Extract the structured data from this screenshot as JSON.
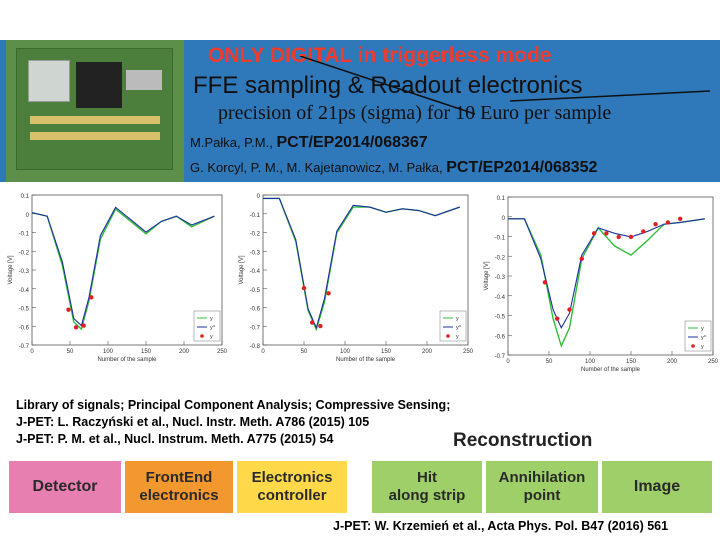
{
  "header": {
    "title_line1": "ONLY DIGITAL in triggerless mode",
    "title_line2": "FFE sampling  &  Readout electronics",
    "title_line3": "precision of 21ps (sigma) for 10 Euro per sample",
    "ref1_authors": "M.Pałka, P.M., ",
    "ref1_patent": "PCT/EP2014/068367",
    "ref2_authors": "G. Korcyl, P. M., M. Kajetanowicz, M. Pałka, ",
    "ref2_patent": "PCT/EP2014/068352"
  },
  "colors": {
    "header_bg": "#2f78ba",
    "title_red": "#f23a2a",
    "green_curve": "#2fbf3a",
    "blue_curve": "#1f2fa0",
    "red_points": "#e02020"
  },
  "plots": {
    "ylabel": "Voltage [V]",
    "xlabel": "Number of the sample",
    "legend": [
      "y",
      "y^",
      "y"
    ],
    "p1": {
      "yticks": [
        "0.1",
        "0",
        "-0.1",
        "-0.2",
        "-0.3",
        "-0.4",
        "-0.5",
        "-0.6",
        "-0.7"
      ],
      "xticks": [
        "0",
        "50",
        "100",
        "150",
        "200",
        "250"
      ]
    },
    "p2": {
      "yticks": [
        "0",
        "-0.1",
        "-0.2",
        "-0.3",
        "-0.4",
        "-0.5",
        "-0.6",
        "-0.7",
        "-0.8"
      ],
      "xticks": [
        "0",
        "50",
        "100",
        "150",
        "200",
        "250"
      ]
    },
    "p3": {
      "yticks": [
        "0.1",
        "0",
        "-0.1",
        "-0.2",
        "-0.3",
        "-0.4",
        "-0.5",
        "-0.6",
        "-0.7"
      ],
      "xticks": [
        "0",
        "50",
        "100",
        "150",
        "200",
        "250"
      ]
    }
  },
  "chart_data": [
    {
      "type": "line",
      "series": [
        {
          "name": "y",
          "x": [
            0,
            20,
            40,
            55,
            65,
            75,
            90,
            110,
            130,
            150,
            170,
            190,
            210,
            240
          ],
          "values": [
            0,
            -0.02,
            -0.3,
            -0.62,
            -0.66,
            -0.5,
            -0.15,
            0.02,
            -0.05,
            -0.12,
            -0.05,
            -0.02,
            -0.08,
            -0.02
          ]
        },
        {
          "name": "y^",
          "x": [
            0,
            20,
            40,
            55,
            65,
            75,
            90,
            110,
            130,
            150,
            170,
            190,
            210,
            240
          ],
          "values": [
            0,
            -0.02,
            -0.28,
            -0.6,
            -0.64,
            -0.48,
            -0.13,
            0.03,
            -0.04,
            -0.11,
            -0.05,
            -0.02,
            -0.07,
            -0.02
          ]
        },
        {
          "name": "y",
          "x": [
            48,
            58,
            68,
            78
          ],
          "values": [
            -0.55,
            -0.65,
            -0.64,
            -0.48
          ]
        }
      ]
    },
    {
      "type": "line",
      "series": [
        {
          "name": "y",
          "x": [
            0,
            20,
            40,
            55,
            65,
            75,
            90,
            110,
            130,
            150,
            170,
            190,
            210,
            240
          ],
          "values": [
            0,
            0,
            -0.25,
            -0.65,
            -0.76,
            -0.6,
            -0.2,
            -0.05,
            -0.05,
            -0.08,
            -0.06,
            -0.07,
            -0.1,
            -0.05
          ]
        },
        {
          "name": "y^",
          "x": [
            0,
            20,
            40,
            55,
            65,
            75,
            90,
            110,
            130,
            150,
            170,
            190,
            210,
            240
          ],
          "values": [
            0,
            0,
            -0.24,
            -0.64,
            -0.75,
            -0.58,
            -0.19,
            -0.04,
            -0.05,
            -0.08,
            -0.06,
            -0.07,
            -0.1,
            -0.05
          ]
        },
        {
          "name": "y",
          "x": [
            50,
            60,
            70,
            80
          ],
          "values": [
            -0.52,
            -0.72,
            -0.74,
            -0.55
          ]
        }
      ]
    },
    {
      "type": "line",
      "series": [
        {
          "name": "y",
          "x": [
            0,
            20,
            40,
            55,
            65,
            75,
            90,
            110,
            130,
            150,
            170,
            190,
            210,
            240
          ],
          "values": [
            0,
            0,
            -0.2,
            -0.55,
            -0.7,
            -0.6,
            -0.22,
            -0.05,
            -0.15,
            -0.2,
            -0.12,
            -0.03,
            -0.02,
            0
          ]
        },
        {
          "name": "y^",
          "x": [
            0,
            20,
            40,
            55,
            65,
            75,
            90,
            110,
            130,
            150,
            170,
            190,
            210,
            240
          ],
          "values": [
            0,
            0,
            -0.22,
            -0.5,
            -0.6,
            -0.52,
            -0.2,
            -0.05,
            -0.08,
            -0.1,
            -0.07,
            -0.03,
            -0.02,
            0
          ]
        },
        {
          "name": "y",
          "x": [
            45,
            60,
            75,
            90,
            105,
            120,
            135,
            150,
            165,
            180,
            195,
            210
          ],
          "values": [
            -0.35,
            -0.55,
            -0.5,
            -0.22,
            -0.08,
            -0.08,
            -0.1,
            -0.1,
            -0.07,
            -0.03,
            -0.02,
            0
          ]
        }
      ]
    }
  ],
  "captions": {
    "line1": "Library of signals;  Principal Component Analysis;   Compressive Sensing;",
    "line2": "J-PET: L. Raczyński et al., Nucl. Instr. Meth.  A786 (2015) 105",
    "line3": "J-PET: P. M. et al., Nucl. Instrum. Meth.  A775 (2015) 54"
  },
  "reconstruction_label": "Reconstruction",
  "pipeline": {
    "detector": "Detector",
    "frontend_1": "FrontEnd",
    "frontend_2": "electronics",
    "controller_1": "Electronics",
    "controller_2": "controller",
    "hit_1": "Hit",
    "hit_2": "along strip",
    "annihilation_1": "Annihilation",
    "annihilation_2": "point",
    "image": "Image"
  },
  "footer": "J-PET: W. Krzemień et al., Acta Phys. Pol. B47 (2016) 561"
}
